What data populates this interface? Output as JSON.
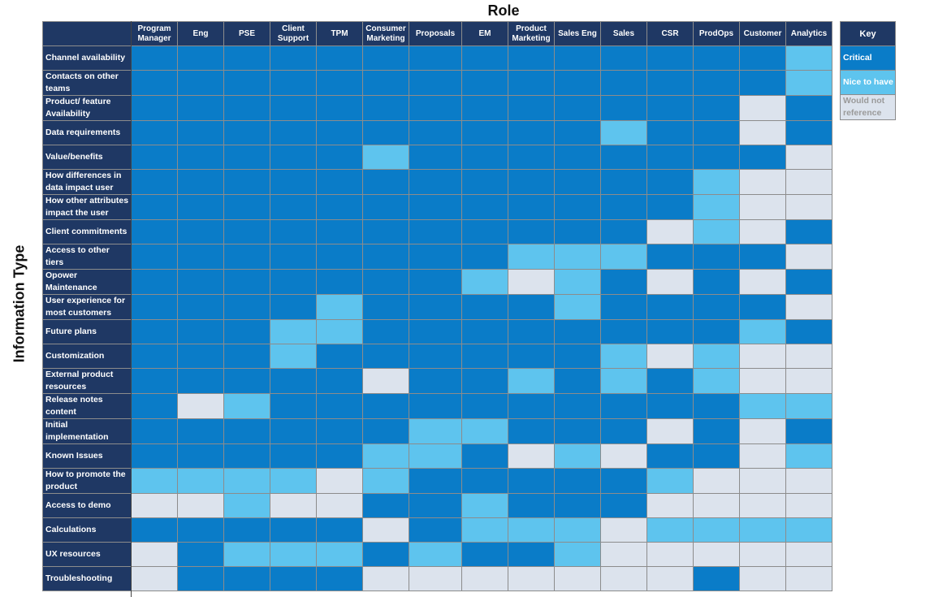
{
  "chart_data": {
    "type": "heatmap",
    "title": "Role",
    "xlabel": "Role",
    "ylabel": "Information Type",
    "columns": [
      "Program\nManager",
      "Eng",
      "PSE",
      "Client\nSupport",
      "TPM",
      "Consumer\nMarketing",
      "Proposals",
      "EM",
      "Product\nMarketing",
      "Sales Eng",
      "Sales",
      "CSR",
      "ProdOps",
      "Customer",
      "Analytics"
    ],
    "rows": [
      "Channel availability",
      "Contacts on other\nteams",
      "Product/ feature\nAvailability",
      "Data requirements",
      "Value/benefits",
      "How differences in\ndata impact user",
      "How other attributes\nimpact the user",
      "Client commitments",
      "Access to other\ntiers",
      "Opower\nMaintenance",
      "User experience for\nmost customers",
      "Future plans",
      "Customization",
      "External product\nresources",
      "Release notes\ncontent",
      "Initial\nimplementation",
      " Known Issues",
      "How to promote the\nproduct",
      "Access to demo",
      "Calculations",
      "UX resources",
      "Troubleshooting"
    ],
    "levels": [
      "Critical",
      "Nice to have",
      "Would not reference"
    ],
    "level_colors": {
      "C": "#0a7cc8",
      "N": "#5ec4ee",
      "W": "#dce3ed"
    },
    "values": [
      [
        "C",
        "C",
        "C",
        "C",
        "C",
        "C",
        "C",
        "C",
        "C",
        "C",
        "C",
        "C",
        "C",
        "C",
        "N"
      ],
      [
        "C",
        "C",
        "C",
        "C",
        "C",
        "C",
        "C",
        "C",
        "C",
        "C",
        "C",
        "C",
        "C",
        "C",
        "N"
      ],
      [
        "C",
        "C",
        "C",
        "C",
        "C",
        "C",
        "C",
        "C",
        "C",
        "C",
        "C",
        "C",
        "C",
        "W",
        "C"
      ],
      [
        "C",
        "C",
        "C",
        "C",
        "C",
        "C",
        "C",
        "C",
        "C",
        "C",
        "N",
        "C",
        "C",
        "W",
        "C"
      ],
      [
        "C",
        "C",
        "C",
        "C",
        "C",
        "N",
        "C",
        "C",
        "C",
        "C",
        "C",
        "C",
        "C",
        "C",
        "W"
      ],
      [
        "C",
        "C",
        "C",
        "C",
        "C",
        "C",
        "C",
        "C",
        "C",
        "C",
        "C",
        "C",
        "N",
        "W",
        "W"
      ],
      [
        "C",
        "C",
        "C",
        "C",
        "C",
        "C",
        "C",
        "C",
        "C",
        "C",
        "C",
        "C",
        "N",
        "W",
        "W"
      ],
      [
        "C",
        "C",
        "C",
        "C",
        "C",
        "C",
        "C",
        "C",
        "C",
        "C",
        "C",
        "W",
        "N",
        "W",
        "C"
      ],
      [
        "C",
        "C",
        "C",
        "C",
        "C",
        "C",
        "C",
        "C",
        "N",
        "N",
        "N",
        "C",
        "C",
        "C",
        "W"
      ],
      [
        "C",
        "C",
        "C",
        "C",
        "C",
        "C",
        "C",
        "N",
        "W",
        "N",
        "C",
        "W",
        "C",
        "W",
        "C"
      ],
      [
        "C",
        "C",
        "C",
        "C",
        "N",
        "C",
        "C",
        "C",
        "C",
        "N",
        "C",
        "C",
        "C",
        "C",
        "W"
      ],
      [
        "C",
        "C",
        "C",
        "N",
        "N",
        "C",
        "C",
        "C",
        "C",
        "C",
        "C",
        "C",
        "C",
        "N",
        "C"
      ],
      [
        "C",
        "C",
        "C",
        "N",
        "C",
        "C",
        "C",
        "C",
        "C",
        "C",
        "N",
        "W",
        "N",
        "W",
        "W"
      ],
      [
        "C",
        "C",
        "C",
        "C",
        "C",
        "W",
        "C",
        "C",
        "N",
        "C",
        "N",
        "C",
        "N",
        "W",
        "W"
      ],
      [
        "C",
        "W",
        "N",
        "C",
        "C",
        "C",
        "C",
        "C",
        "C",
        "C",
        "C",
        "C",
        "C",
        "N",
        "N"
      ],
      [
        "C",
        "C",
        "C",
        "C",
        "C",
        "C",
        "N",
        "N",
        "C",
        "C",
        "C",
        "W",
        "C",
        "W",
        "C"
      ],
      [
        "C",
        "C",
        "C",
        "C",
        "C",
        "N",
        "N",
        "C",
        "W",
        "N",
        "W",
        "C",
        "C",
        "W",
        "N"
      ],
      [
        "N",
        "N",
        "N",
        "N",
        "W",
        "N",
        "C",
        "C",
        "C",
        "C",
        "C",
        "N",
        "W",
        "W",
        "W"
      ],
      [
        "W",
        "W",
        "N",
        "W",
        "W",
        "C",
        "C",
        "N",
        "C",
        "C",
        "C",
        "W",
        "W",
        "W",
        "W"
      ],
      [
        "C",
        "C",
        "C",
        "C",
        "C",
        "W",
        "C",
        "N",
        "N",
        "N",
        "W",
        "N",
        "N",
        "N",
        "N"
      ],
      [
        "W",
        "C",
        "N",
        "N",
        "N",
        "C",
        "N",
        "C",
        "C",
        "N",
        "W",
        "W",
        "W",
        "W",
        "W"
      ],
      [
        "W",
        "C",
        "C",
        "C",
        "C",
        "W",
        "W",
        "W",
        "W",
        "W",
        "W",
        "W",
        "C",
        "W",
        "W"
      ]
    ],
    "legend": {
      "title": "Key",
      "items": [
        {
          "label": "Critical",
          "code": "C",
          "color": "#0a7cc8",
          "text_color": "#ffffff"
        },
        {
          "label": "Nice to have",
          "code": "N",
          "color": "#5ec4ee",
          "text_color": "#ffffff"
        },
        {
          "label": "Would not\nreference",
          "code": "W",
          "color": "#dce3ed",
          "text_color": "#9a9a9a"
        }
      ],
      "placement": "right"
    },
    "colors": {
      "header_bg": "#1f3864"
    }
  }
}
